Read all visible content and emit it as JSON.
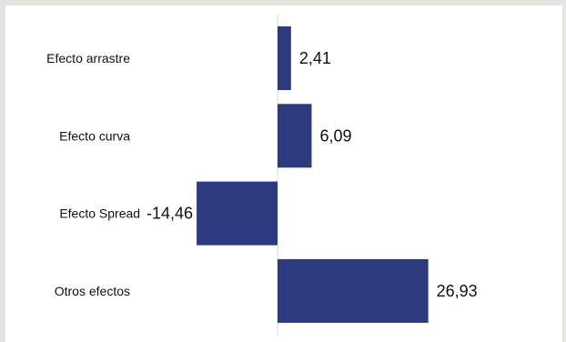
{
  "chart_data": {
    "type": "bar",
    "orientation": "horizontal",
    "categories": [
      "Efecto arrastre",
      "Efecto curva",
      "Efecto Spread",
      "Otros efectos"
    ],
    "values": [
      2.41,
      6.09,
      -14.46,
      26.93
    ],
    "value_labels": [
      "2,41",
      "6,09",
      "-14,46",
      "26,93"
    ],
    "bar_color": "#2e3a7e",
    "axis_color": "#d9d9d9",
    "grid": false,
    "legend": "none"
  }
}
